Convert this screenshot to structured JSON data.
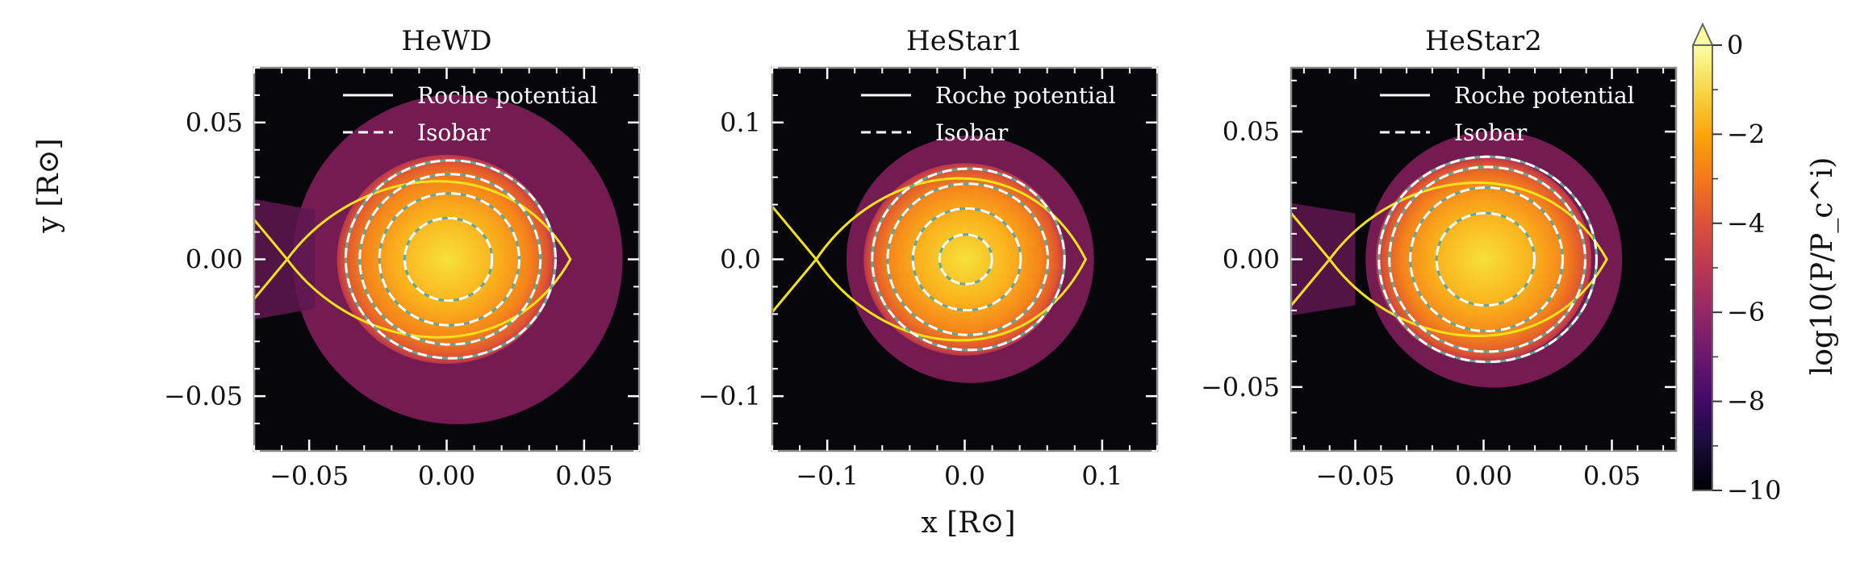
{
  "figure": {
    "xlabel": "x [R⊙]",
    "ylabel": "y [R⊙]"
  },
  "colorbar": {
    "label": "log10(P/P_c^i)",
    "range": [
      -10,
      0
    ],
    "ticks": [
      "0",
      "−2",
      "−4",
      "−6",
      "−8",
      "−10"
    ],
    "tick_values": [
      0,
      -2,
      -4,
      -6,
      -8,
      -10
    ],
    "extend": "max",
    "colormap": "inferno"
  },
  "chart_data": [
    {
      "type": "heatmap",
      "title": "HeWD",
      "xlim": [
        -0.07,
        0.07
      ],
      "ylim": [
        -0.07,
        0.07
      ],
      "xticks": [
        -0.05,
        0.0,
        0.05
      ],
      "xtick_labels": [
        "−0.05",
        "0.00",
        "0.05"
      ],
      "yticks": [
        -0.05,
        0.0,
        0.05
      ],
      "ytick_labels": [
        "−0.05",
        "0.00",
        "0.05"
      ],
      "star_radius": 0.038,
      "envelope_radius": 0.06,
      "roche_l1": -0.058,
      "roche_front": 0.045,
      "isobar_radii": [
        0.015,
        0.024,
        0.031,
        0.036
      ],
      "legend": [
        "Roche potential",
        "Isobar"
      ],
      "legend_position": "top-right"
    },
    {
      "type": "heatmap",
      "title": "HeStar1",
      "xlim": [
        -0.14,
        0.14
      ],
      "ylim": [
        -0.14,
        0.14
      ],
      "xticks": [
        -0.1,
        0.0,
        0.1
      ],
      "xtick_labels": [
        "−0.1",
        "0.0",
        "0.1"
      ],
      "yticks": [
        -0.1,
        0.0,
        0.1
      ],
      "ytick_labels": [
        "−0.1",
        "0.0",
        "0.1"
      ],
      "star_radius": 0.07,
      "envelope_radius": 0.09,
      "roche_l1": -0.108,
      "roche_front": 0.088,
      "isobar_radii": [
        0.018,
        0.037,
        0.055,
        0.066
      ],
      "legend": [
        "Roche potential",
        "Isobar"
      ],
      "legend_position": "top-right"
    },
    {
      "type": "heatmap",
      "title": "HeStar2",
      "xlim": [
        -0.075,
        0.075
      ],
      "ylim": [
        -0.075,
        0.075
      ],
      "xticks": [
        -0.05,
        0.0,
        0.05
      ],
      "xtick_labels": [
        "−0.05",
        "0.00",
        "0.05"
      ],
      "yticks": [
        -0.05,
        0.0,
        0.05
      ],
      "ytick_labels": [
        "−0.05",
        "0.00",
        "0.05"
      ],
      "star_radius": 0.04,
      "envelope_radius": 0.05,
      "roche_l1": -0.06,
      "roche_front": 0.048,
      "isobar_radii": [
        0.018,
        0.028,
        0.036,
        0.04
      ],
      "legend": [
        "Roche potential",
        "Isobar"
      ],
      "legend_position": "top-right"
    }
  ]
}
